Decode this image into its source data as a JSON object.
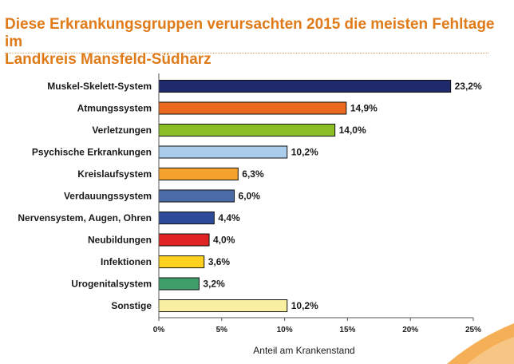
{
  "header": {
    "title_line1": "Diese Erkrankungsgruppen verursachten 2015 die meisten Fehltage im",
    "title_line2": "Landkreis Mansfeld-Südharz"
  },
  "chart_data": {
    "type": "bar",
    "orientation": "horizontal",
    "categories": [
      "Muskel-Skelett-System",
      "Atmungssystem",
      "Verletzungen",
      "Psychische Erkrankungen",
      "Kreislaufsystem",
      "Verdauungssystem",
      "Nervensystem, Augen, Ohren",
      "Neubildungen",
      "Infektionen",
      "Urogenitalsystem",
      "Sonstige"
    ],
    "values": [
      23.2,
      14.9,
      14.0,
      10.2,
      6.3,
      6.0,
      4.4,
      4.0,
      3.6,
      3.2,
      10.2
    ],
    "value_labels": [
      "23,2%",
      "14,9%",
      "14,0%",
      "10,2%",
      "6,3%",
      "6,0%",
      "4,4%",
      "4,0%",
      "3,6%",
      "3,2%",
      "10,2%"
    ],
    "colors": [
      "#1f2a6b",
      "#ea6a1f",
      "#8cbf26",
      "#a9cdea",
      "#f5a22f",
      "#4a6aa8",
      "#2e4a9a",
      "#e02424",
      "#ffd21f",
      "#3f9e6a",
      "#f8f0a0"
    ],
    "x_ticks": [
      0,
      5,
      10,
      15,
      20,
      25
    ],
    "x_tick_labels": [
      "0%",
      "5%",
      "10%",
      "15%",
      "20%",
      "25%"
    ],
    "xlim": [
      0,
      25
    ],
    "xlabel": "Anteil am Krankenstand",
    "ylabel": "",
    "grid": false,
    "legend": "none"
  }
}
